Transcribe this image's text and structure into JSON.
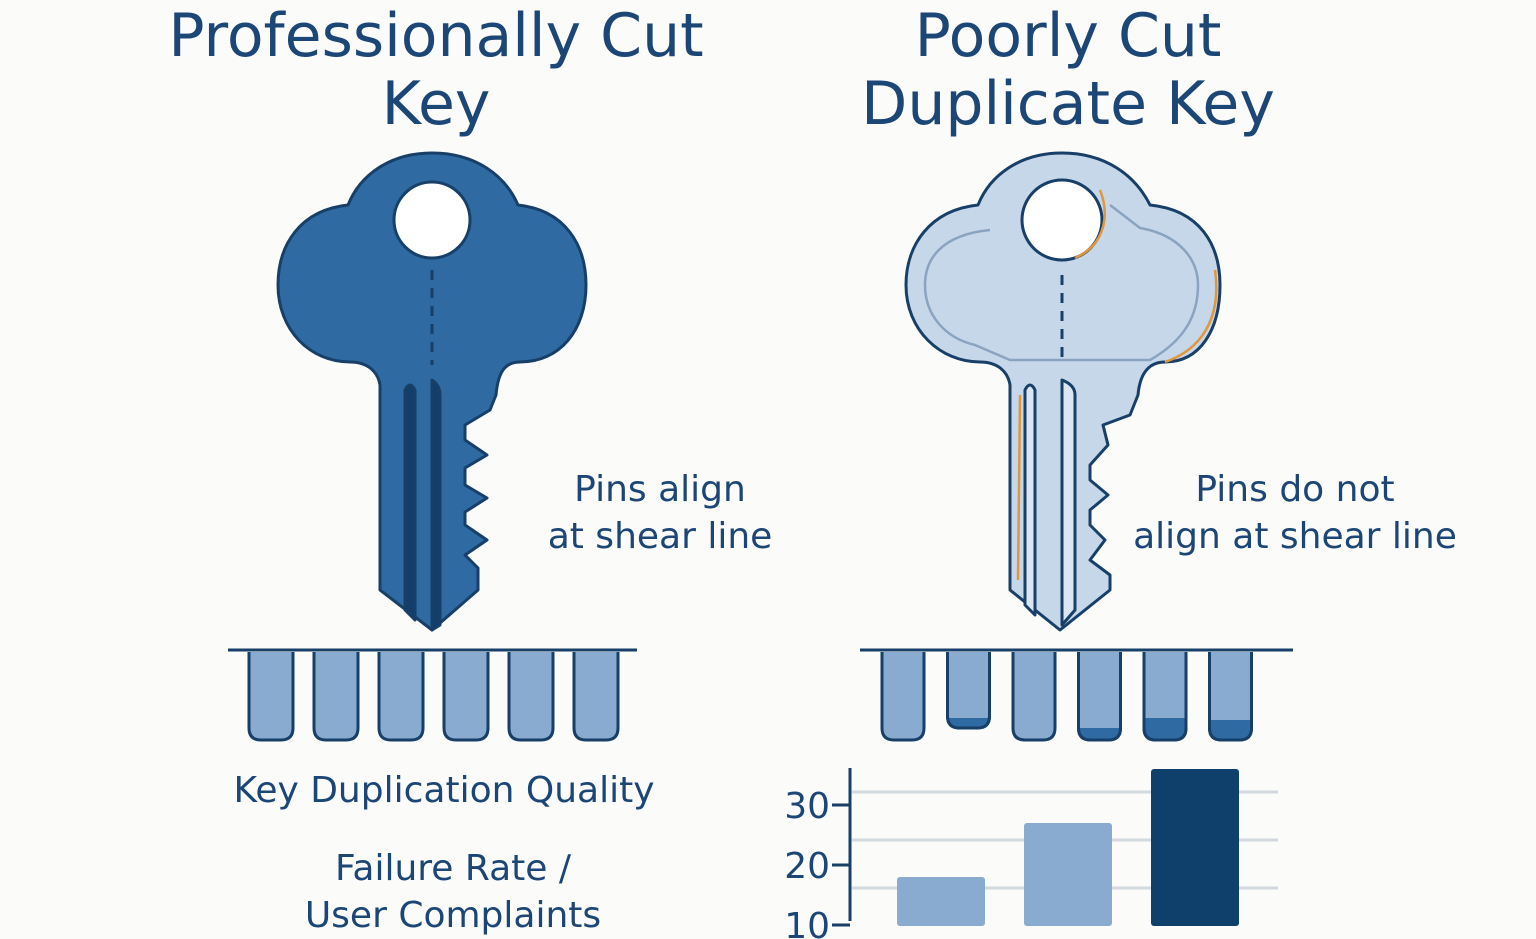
{
  "left": {
    "title_line1": "Professionally Cut",
    "title_line2": "Key",
    "caption_line1": "Pins align",
    "caption_line2": "at shear line"
  },
  "right": {
    "title_line1": "Poorly Cut",
    "title_line2": "Duplicate Key",
    "caption_line1": "Pins do not",
    "caption_line2": "align at shear line"
  },
  "bottom_left": {
    "heading": "Key Duplication Quality",
    "subheading_line1": "Failure Rate /",
    "subheading_line2": "User Complaints"
  },
  "colors": {
    "text": "#1b4675",
    "good_key": "#2f6aa3",
    "poor_key": "#c7d7ea",
    "accent_orange": "#e0963a",
    "pin": "#8aabd0",
    "bar_light": "#8aabd0",
    "bar_dark": "#0f3f6b"
  },
  "chart_data": {
    "type": "bar",
    "categories": [
      "",
      "",
      ""
    ],
    "values": [
      18,
      27,
      36
    ],
    "yticks": [
      "10",
      "20",
      "30"
    ],
    "ylim": [
      10,
      37
    ],
    "grid": true,
    "cropped": true
  }
}
